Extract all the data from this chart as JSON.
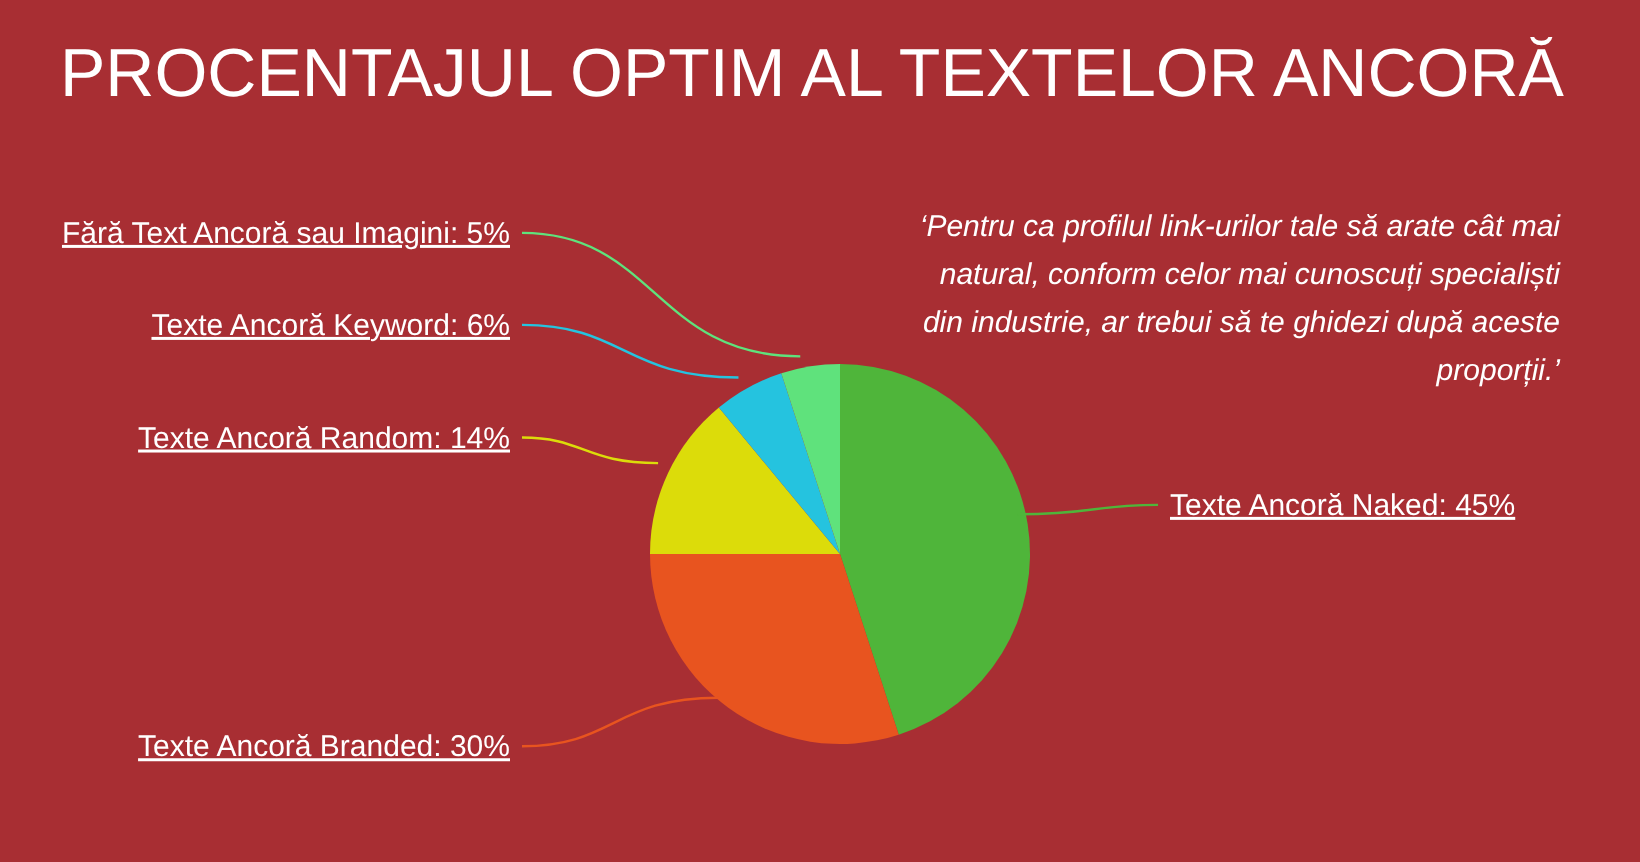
{
  "chart_data": {
    "type": "pie",
    "title": "PROCENTAJUL OPTIM AL TEXTELOR ANCORĂ",
    "categories": [
      "Texte Ancoră Naked",
      "Texte Ancoră Branded",
      "Texte Ancoră Random",
      "Texte Ancoră Keyword",
      "Fără Text Ancoră sau Imagini"
    ],
    "values": [
      45,
      30,
      14,
      6,
      5
    ],
    "value_labels": [
      "45%",
      "30%",
      "14%",
      "6%",
      "5%"
    ],
    "colors": [
      "#4fb53a",
      "#e8541f",
      "#dcdc0a",
      "#25c3df",
      "#5fe27c"
    ],
    "annotations": [
      "‘Pentru ca profilul link-urilor tale să arate cât mai natural, conform celor mai cunoscuți specialiști din industrie, ar trebui să te ghidezi după aceste proporții.’"
    ]
  }
}
